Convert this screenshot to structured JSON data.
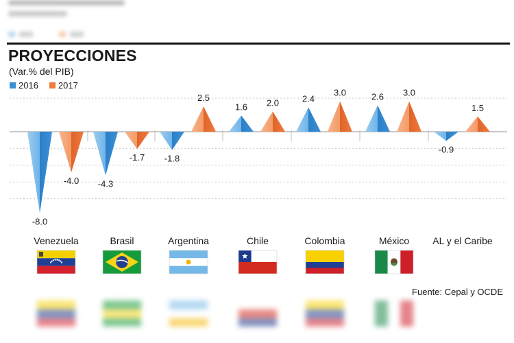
{
  "header": {
    "title": "PROYECCIONES",
    "subtitle": "(Var.% del PIB)"
  },
  "legend": [
    {
      "label": "2016",
      "color": "#3b8fd6"
    },
    {
      "label": "2017",
      "color": "#ef7a3c"
    }
  ],
  "source": "Fuente: Cepal y OCDE",
  "chart_data": {
    "type": "bar",
    "categories": [
      "Venezuela",
      "Brasil",
      "Argentina",
      "Chile",
      "Colombia",
      "México",
      "AL y el Caribe"
    ],
    "series": [
      {
        "name": "2016",
        "values": [
          -8.0,
          -4.3,
          -1.8,
          1.6,
          2.4,
          2.6,
          -0.9
        ]
      },
      {
        "name": "2017",
        "values": [
          -4.0,
          -1.7,
          2.5,
          2.0,
          3.0,
          3.0,
          1.5
        ]
      }
    ],
    "labels": {
      "2016": [
        "-8.0",
        "-4.3",
        "-1.8",
        "1.6",
        "2.4",
        "2.6",
        "-0.9"
      ],
      "2017": [
        "-4.0",
        "-1.7",
        "2.5",
        "2.0",
        "3.0",
        "3.0",
        "1.5"
      ]
    },
    "ylim": [
      -8.5,
      3.5
    ],
    "grid": true,
    "mark": "triangle"
  },
  "flags": [
    {
      "country": "Venezuela",
      "icon": "venezuela-flag-icon",
      "colors": [
        "#f4d000",
        "#1f3f95",
        "#d5202e"
      ]
    },
    {
      "country": "Brasil",
      "icon": "brazil-flag-icon",
      "colors": [
        "#169b3c",
        "#f7d417",
        "#22408f"
      ]
    },
    {
      "country": "Argentina",
      "icon": "argentina-flag-icon",
      "colors": [
        "#74b9e7",
        "#ffffff",
        "#f4b400"
      ]
    },
    {
      "country": "Chile",
      "icon": "chile-flag-icon",
      "colors": [
        "#ffffff",
        "#d52b1e",
        "#1e3a8f"
      ]
    },
    {
      "country": "Colombia",
      "icon": "colombia-flag-icon",
      "colors": [
        "#f9d100",
        "#1f3f95",
        "#ce2029"
      ]
    },
    {
      "country": "México",
      "icon": "mexico-flag-icon",
      "colors": [
        "#1a8a4a",
        "#ffffff",
        "#ce2029"
      ]
    }
  ]
}
